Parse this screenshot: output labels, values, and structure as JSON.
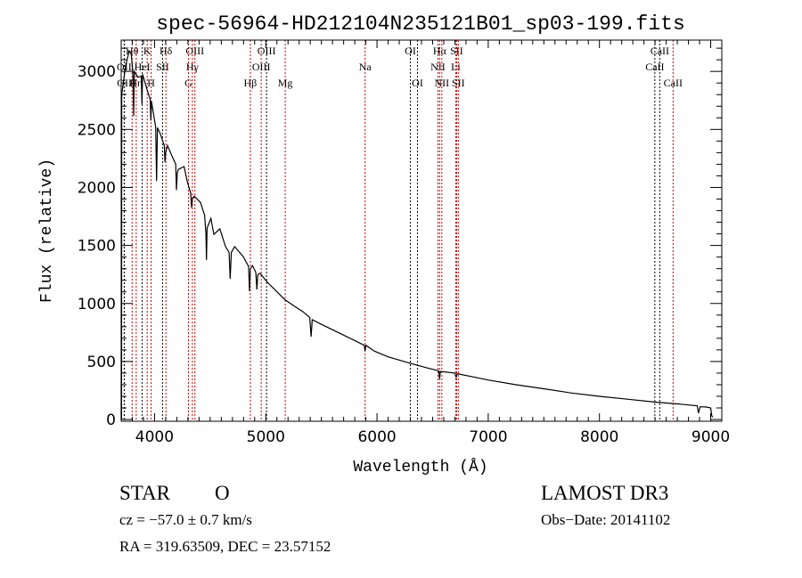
{
  "chart_data": {
    "type": "line",
    "title": "spec-56964-HD212104N235121B01_sp03-199.fits",
    "xlabel": "Wavelength (Å)",
    "ylabel": "Flux (relative)",
    "xlim": [
      3700,
      9100
    ],
    "ylim": [
      -15,
      3270
    ],
    "xticks": [
      4000,
      5000,
      6000,
      7000,
      8000,
      9000
    ],
    "yticks": [
      0,
      500,
      1000,
      1500,
      2000,
      2500,
      3000
    ],
    "grid": false,
    "series": [
      {
        "name": "spectrum",
        "color": "#000000",
        "points": [
          [
            3700,
            0
          ],
          [
            3701,
            1310
          ],
          [
            3703,
            0
          ],
          [
            3705,
            2800
          ],
          [
            3740,
            3050
          ],
          [
            3772,
            3177
          ],
          [
            3790,
            3150
          ],
          [
            3805,
            3000
          ],
          [
            3812,
            2615
          ],
          [
            3818,
            3000
          ],
          [
            3850,
            2950
          ],
          [
            3880,
            2960
          ],
          [
            3887,
            2717
          ],
          [
            3892,
            2975
          ],
          [
            3932,
            2845
          ],
          [
            3960,
            2760
          ],
          [
            3967,
            2577
          ],
          [
            3972,
            2745
          ],
          [
            4010,
            2520
          ],
          [
            4018,
            2055
          ],
          [
            4026,
            2515
          ],
          [
            4052,
            2462
          ],
          [
            4088,
            2360
          ],
          [
            4093,
            2219
          ],
          [
            4100,
            2300
          ],
          [
            4117,
            2362
          ],
          [
            4157,
            2270
          ],
          [
            4190,
            2200
          ],
          [
            4197,
            1978
          ],
          [
            4204,
            2120
          ],
          [
            4213,
            2155
          ],
          [
            4266,
            2180
          ],
          [
            4293,
            2055
          ],
          [
            4325,
            1950
          ],
          [
            4333,
            1825
          ],
          [
            4340,
            1900
          ],
          [
            4357,
            1925
          ],
          [
            4413,
            1871
          ],
          [
            4450,
            1760
          ],
          [
            4462,
            1600
          ],
          [
            4467,
            1375
          ],
          [
            4472,
            1650
          ],
          [
            4507,
            1733
          ],
          [
            4533,
            1595
          ],
          [
            4587,
            1643
          ],
          [
            4638,
            1490
          ],
          [
            4670,
            1440
          ],
          [
            4680,
            1212
          ],
          [
            4690,
            1440
          ],
          [
            4720,
            1490
          ],
          [
            4798,
            1403
          ],
          [
            4845,
            1320
          ],
          [
            4854,
            1107
          ],
          [
            4862,
            1300
          ],
          [
            4880,
            1327
          ],
          [
            4910,
            1270
          ],
          [
            4920,
            1120
          ],
          [
            4928,
            1250
          ],
          [
            4948,
            1260
          ],
          [
            5014,
            1183
          ],
          [
            5094,
            1107
          ],
          [
            5174,
            1030
          ],
          [
            5260,
            975
          ],
          [
            5335,
            928
          ],
          [
            5395,
            880
          ],
          [
            5407,
            713
          ],
          [
            5418,
            860
          ],
          [
            5500,
            820
          ],
          [
            5650,
            750
          ],
          [
            5800,
            680
          ],
          [
            5885,
            640
          ],
          [
            5893,
            590
          ],
          [
            5900,
            640
          ],
          [
            5975,
            590
          ],
          [
            6100,
            540
          ],
          [
            6300,
            485
          ],
          [
            6450,
            445
          ],
          [
            6555,
            420
          ],
          [
            6563,
            350
          ],
          [
            6570,
            415
          ],
          [
            6700,
            400
          ],
          [
            6712,
            365
          ],
          [
            6720,
            395
          ],
          [
            6850,
            370
          ],
          [
            7000,
            340
          ],
          [
            7250,
            300
          ],
          [
            7500,
            265
          ],
          [
            7750,
            228
          ],
          [
            8000,
            200
          ],
          [
            8250,
            175
          ],
          [
            8500,
            150
          ],
          [
            8700,
            135
          ],
          [
            8880,
            118
          ],
          [
            8890,
            55
          ],
          [
            8905,
            110
          ],
          [
            8960,
            108
          ],
          [
            9000,
            100
          ],
          [
            9010,
            30
          ],
          [
            9020,
            20
          ]
        ]
      }
    ],
    "lines": [
      {
        "label": "OII",
        "wave": 3727,
        "row": 2,
        "color": "#000000"
      },
      {
        "label": "OII",
        "wave": 3729,
        "row": 3,
        "color": "#000000"
      },
      {
        "label": "Hθ",
        "wave": 3798,
        "row": 1,
        "color": "#cc0000"
      },
      {
        "label": "Hη",
        "wave": 3835,
        "row": 3,
        "color": "#cc0000"
      },
      {
        "label": "HeI",
        "wave": 3889,
        "row": 2,
        "color": "#000000"
      },
      {
        "label": "K",
        "wave": 3934,
        "row": 1,
        "color": "#cc0000"
      },
      {
        "label": "H",
        "wave": 3969,
        "row": 3,
        "color": "#cc0000"
      },
      {
        "label": "SII",
        "wave": 4072,
        "row": 2,
        "color": "#000000"
      },
      {
        "label": "Hδ",
        "wave": 4102,
        "row": 1,
        "color": "#cc0000"
      },
      {
        "label": "G",
        "wave": 4305,
        "row": 3,
        "color": "#cc0000"
      },
      {
        "label": "Hγ",
        "wave": 4340,
        "row": 2,
        "color": "#cc0000"
      },
      {
        "label": "OIII",
        "wave": 4363,
        "row": 1,
        "color": "#cc0000"
      },
      {
        "label": "Hβ",
        "wave": 4861,
        "row": 3,
        "color": "#cc0000"
      },
      {
        "label": "OIII",
        "wave": 4959,
        "row": 2,
        "color": "#cc0000"
      },
      {
        "label": "OIII",
        "wave": 5007,
        "row": 1,
        "color": "#000000"
      },
      {
        "label": "Mg",
        "wave": 5175,
        "row": 3,
        "color": "#cc0000"
      },
      {
        "label": "Na",
        "wave": 5893,
        "row": 2,
        "color": "#cc0000"
      },
      {
        "label": "OI",
        "wave": 6300,
        "row": 1,
        "color": "#000000"
      },
      {
        "label": "OI",
        "wave": 6364,
        "row": 3,
        "color": "#000000"
      },
      {
        "label": "NII",
        "wave": 6548,
        "row": 2,
        "color": "#cc0000"
      },
      {
        "label": "Hα",
        "wave": 6563,
        "row": 1,
        "color": "#cc0000"
      },
      {
        "label": "NII",
        "wave": 6583,
        "row": 3,
        "color": "#cc0000"
      },
      {
        "label": "Li",
        "wave": 6708,
        "row": 2,
        "color": "#cc0000"
      },
      {
        "label": "SII",
        "wave": 6716,
        "row": 1,
        "color": "#cc0000"
      },
      {
        "label": "SII",
        "wave": 6731,
        "row": 3,
        "color": "#cc0000"
      },
      {
        "label": "CaII",
        "wave": 8498,
        "row": 2,
        "color": "#000000"
      },
      {
        "label": "CaII",
        "wave": 8542,
        "row": 1,
        "color": "#000000"
      },
      {
        "label": "CaII",
        "wave": 8662,
        "row": 3,
        "color": "#cc0000"
      }
    ]
  },
  "info": {
    "class": "STAR",
    "subclass": "O",
    "survey": "LAMOST DR3",
    "cz": "cz = −57.0 ± 0.7 km/s",
    "obs_date": "Obs−Date: 20141102",
    "coords": "RA = 319.63509, DEC =  23.57152"
  }
}
